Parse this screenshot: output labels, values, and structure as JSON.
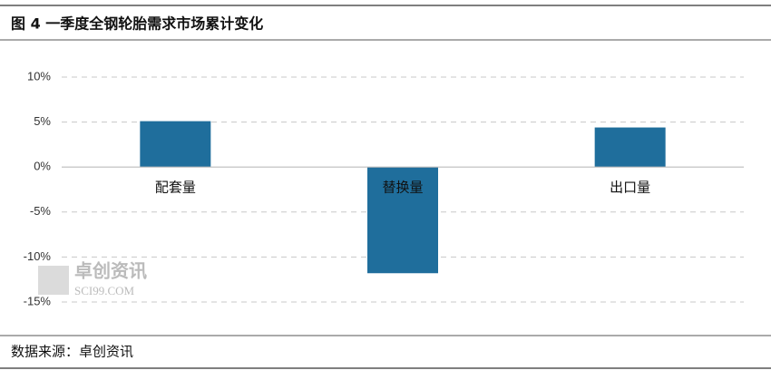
{
  "chart_data": {
    "type": "bar",
    "title": "图 4 一季度全钢轮胎需求市场累计变化",
    "source": "数据来源：卓创资讯",
    "watermark": [
      "卓创资讯",
      "SCI99.COM"
    ],
    "categories": [
      "配套量",
      "替换量",
      "出口量"
    ],
    "values": [
      5.1,
      -11.8,
      4.4
    ],
    "color": "#1f6e9c",
    "ylim": [
      -15,
      10
    ],
    "yticks": [
      {
        "value": -15,
        "label": "-15%"
      },
      {
        "value": -10,
        "label": "-10%"
      },
      {
        "value": -5,
        "label": "-5%"
      },
      {
        "value": 0,
        "label": "0%"
      },
      {
        "value": 5,
        "label": "5%"
      },
      {
        "value": 10,
        "label": "10%"
      }
    ],
    "grid": true
  }
}
